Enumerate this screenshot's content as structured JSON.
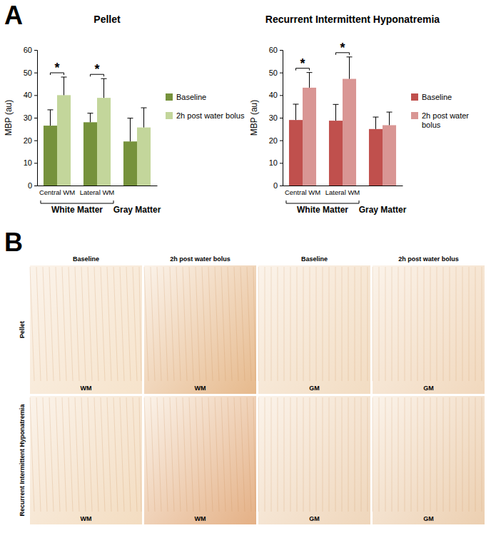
{
  "panel_labels": [
    "A",
    "B"
  ],
  "chart_data": [
    {
      "type": "bar",
      "title": "Pellet",
      "y_label": "MBP (au)",
      "categories": [
        "Central WM",
        "Lateral WM",
        null
      ],
      "group_labels": [
        "White Matter",
        "White Matter",
        "Gray Matter"
      ],
      "series": [
        {
          "name": "Baseline",
          "color": "#76923c",
          "values": [
            26.5,
            28,
            19.5
          ],
          "errors": [
            7,
            4,
            10.3
          ]
        },
        {
          "name": "2h post water bolus",
          "color": "#c3d69b",
          "values": [
            40,
            38.8,
            25.7
          ],
          "errors": [
            8,
            8.5,
            8.7
          ]
        }
      ],
      "ylim": [
        0,
        60
      ],
      "yticks": [
        0,
        10,
        20,
        30,
        40,
        50,
        60
      ],
      "legend": "right",
      "annotations": [
        {
          "text": "*",
          "category": "Central WM"
        },
        {
          "text": "*",
          "category": "Lateral WM"
        }
      ]
    },
    {
      "type": "bar",
      "title": "Recurrent Intermittent Hyponatremia",
      "y_label": "MBP (au)",
      "categories": [
        "Central WM",
        "Lateral WM",
        null
      ],
      "group_labels": [
        "White Matter",
        "White Matter",
        "Gray Matter"
      ],
      "series": [
        {
          "name": "Baseline",
          "color": "#c0504d",
          "values": [
            29,
            28.7,
            25
          ],
          "errors": [
            7,
            7.2,
            5.3
          ]
        },
        {
          "name": "2h post water bolus",
          "color": "#d99694",
          "values": [
            43.3,
            47.2,
            26.7
          ],
          "errors": [
            6.7,
            9.7,
            5.8
          ]
        }
      ],
      "ylim": [
        0,
        60
      ],
      "yticks": [
        0,
        10,
        20,
        30,
        40,
        50,
        60
      ],
      "legend": "right",
      "annotations": [
        {
          "text": "*",
          "category": "Central WM"
        },
        {
          "text": "*",
          "category": "Lateral WM"
        }
      ]
    }
  ],
  "image_grid": {
    "column_titles": [
      "Baseline",
      "2h post water bolus",
      "Baseline",
      "2h post water bolus"
    ],
    "row_titles": [
      "Pellet",
      "Recurrent Intermittent Hyponatremia"
    ],
    "cell_labels": [
      [
        "WM",
        "WM",
        "GM",
        "GM"
      ],
      [
        "WM",
        "WM",
        "GM",
        "GM"
      ]
    ]
  }
}
